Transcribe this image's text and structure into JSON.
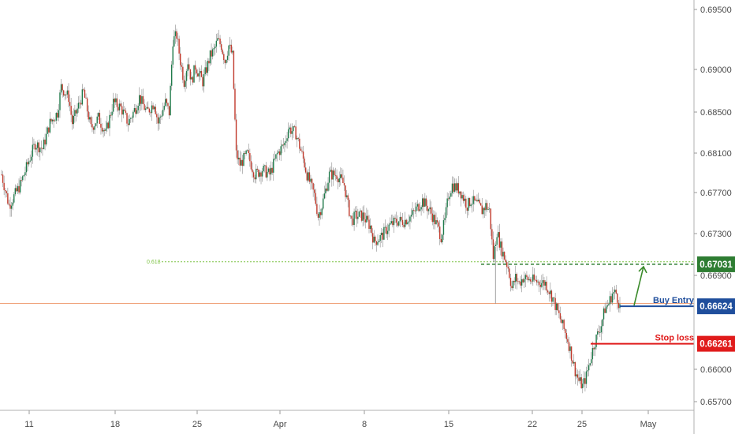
{
  "chart_data": {
    "type": "candlestick",
    "x_axis": {
      "tick_labels": [
        "11",
        "18",
        "25",
        "Apr",
        "8",
        "15",
        "22",
        "25",
        "May"
      ]
    },
    "y_axis": {
      "position": "right",
      "range": [
        0.6555,
        0.696
      ],
      "tick_labels": [
        "0.69500",
        "0.69000",
        "0.68500",
        "0.68100",
        "0.67700",
        "0.67300",
        "0.66900",
        "0.66000",
        "0.65700"
      ]
    },
    "levels": {
      "fib_ratio_label": "0.618",
      "fib_price": 0.6704,
      "take_profit": {
        "value": "0.67031",
        "price": 0.67031,
        "color": "#2e7d32"
      },
      "buy_entry": {
        "label": "Buy Entry",
        "value": "0.66624",
        "price": 0.66624,
        "color": "#1f4e9c"
      },
      "stop_loss": {
        "label": "Stop loss",
        "value": "0.66261",
        "price": 0.66261,
        "color": "#e01b1b"
      },
      "current_price_line": 0.6666
    },
    "price_path": [
      [
        0,
        0.679
      ],
      [
        2,
        0.676
      ],
      [
        5,
        0.678
      ],
      [
        7,
        0.68
      ],
      [
        9,
        0.682
      ],
      [
        11,
        0.6815
      ],
      [
        13,
        0.684
      ],
      [
        15,
        0.685
      ],
      [
        16,
        0.6875
      ],
      [
        18,
        0.6865
      ],
      [
        19,
        0.684
      ],
      [
        20,
        0.685
      ],
      [
        22,
        0.687
      ],
      [
        24,
        0.6835
      ],
      [
        26,
        0.6845
      ],
      [
        28,
        0.683
      ],
      [
        30,
        0.686
      ],
      [
        32,
        0.6855
      ],
      [
        34,
        0.684
      ],
      [
        36,
        0.6855
      ],
      [
        37,
        0.6865
      ],
      [
        39,
        0.685
      ],
      [
        41,
        0.686
      ],
      [
        42,
        0.684
      ],
      [
        44,
        0.686
      ],
      [
        45,
        0.685
      ],
      [
        46,
        0.692
      ],
      [
        47,
        0.6925
      ],
      [
        48,
        0.69
      ],
      [
        49,
        0.688
      ],
      [
        50,
        0.69
      ],
      [
        51,
        0.688
      ],
      [
        52,
        0.6895
      ],
      [
        54,
        0.688
      ],
      [
        56,
        0.6905
      ],
      [
        57,
        0.691
      ],
      [
        58,
        0.692
      ],
      [
        59,
        0.6915
      ],
      [
        60,
        0.69
      ],
      [
        61,
        0.6915
      ],
      [
        62,
        0.6905
      ],
      [
        63,
        0.681
      ],
      [
        64,
        0.68
      ],
      [
        66,
        0.681
      ],
      [
        68,
        0.679
      ],
      [
        70,
        0.6795
      ],
      [
        72,
        0.679
      ],
      [
        74,
        0.681
      ],
      [
        76,
        0.682
      ],
      [
        77,
        0.6835
      ],
      [
        79,
        0.683
      ],
      [
        81,
        0.6805
      ],
      [
        82,
        0.679
      ],
      [
        84,
        0.677
      ],
      [
        85,
        0.675
      ],
      [
        86,
        0.676
      ],
      [
        88,
        0.679
      ],
      [
        90,
        0.679
      ],
      [
        92,
        0.678
      ],
      [
        93,
        0.676
      ],
      [
        94,
        0.6745
      ],
      [
        95,
        0.675
      ],
      [
        97,
        0.675
      ],
      [
        99,
        0.674
      ],
      [
        100,
        0.6725
      ],
      [
        102,
        0.673
      ],
      [
        104,
        0.674
      ],
      [
        106,
        0.6745
      ],
      [
        108,
        0.6745
      ],
      [
        110,
        0.675
      ],
      [
        112,
        0.676
      ],
      [
        113,
        0.6765
      ],
      [
        115,
        0.6755
      ],
      [
        117,
        0.674
      ],
      [
        118,
        0.673
      ],
      [
        119,
        0.6745
      ],
      [
        120,
        0.677
      ],
      [
        121,
        0.678
      ],
      [
        123,
        0.6775
      ],
      [
        125,
        0.676
      ],
      [
        126,
        0.6765
      ],
      [
        128,
        0.676
      ],
      [
        129,
        0.6755
      ],
      [
        130,
        0.676
      ],
      [
        131,
        0.6755
      ],
      [
        132,
        0.671
      ],
      [
        133,
        0.6735
      ],
      [
        134,
        0.672
      ],
      [
        135,
        0.671
      ],
      [
        136,
        0.67
      ],
      [
        137,
        0.668
      ],
      [
        138,
        0.669
      ],
      [
        139,
        0.6685
      ],
      [
        140,
        0.669
      ],
      [
        142,
        0.6688
      ],
      [
        144,
        0.6686
      ],
      [
        146,
        0.6685
      ],
      [
        148,
        0.667
      ],
      [
        150,
        0.665
      ],
      [
        151,
        0.664
      ],
      [
        152,
        0.663
      ],
      [
        153,
        0.6615
      ],
      [
        154,
        0.66
      ],
      [
        155,
        0.659
      ],
      [
        156,
        0.6585
      ],
      [
        157,
        0.6595
      ],
      [
        158,
        0.661
      ],
      [
        159,
        0.6625
      ],
      [
        160,
        0.6635
      ],
      [
        161,
        0.6645
      ],
      [
        162,
        0.666
      ],
      [
        163,
        0.6665
      ],
      [
        164,
        0.6675
      ],
      [
        165,
        0.6675
      ],
      [
        166,
        0.6662
      ]
    ]
  }
}
